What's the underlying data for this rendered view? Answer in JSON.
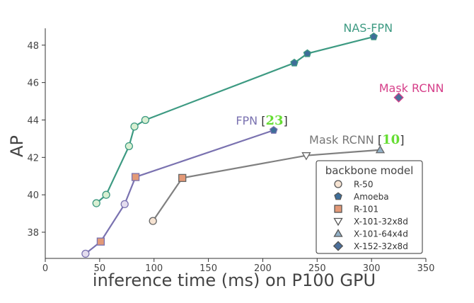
{
  "chart_data": {
    "type": "line",
    "title": "",
    "xlabel": "inference time (ms) on P100 GPU",
    "ylabel": "AP",
    "xlim": [
      0,
      350
    ],
    "ylim": [
      36.6,
      48.9
    ],
    "xticks": [
      0,
      50,
      100,
      150,
      200,
      250,
      300,
      350
    ],
    "yticks": [
      38,
      40,
      42,
      44,
      46,
      48
    ],
    "grid": false,
    "legend_title": "backbone model",
    "legend_position": "lower-right",
    "colors": {
      "nasfpn": "#3d9a82",
      "fpn": "#7a72b0",
      "maskrcnn_x": "#808080",
      "maskrcnn_single": "#d6408a",
      "ref": "#66dd33",
      "marker_r50": "#f6e3d2",
      "marker_amoeba": "#3e6e99",
      "marker_r101": "#e39977",
      "marker_x101_32": "#ffffff",
      "marker_x101_64": "#93b1c7",
      "marker_x152": "#4b6f9b",
      "pale_green": "#d9efd2",
      "pale_lavender": "#e3dcee"
    },
    "legend": [
      {
        "label": "R-50",
        "marker": "circle",
        "color": "#f6e3d2"
      },
      {
        "label": "Amoeba",
        "marker": "pentagon",
        "color": "#3e6e99"
      },
      {
        "label": "R-101",
        "marker": "square",
        "color": "#e39977"
      },
      {
        "label": "X-101-32x8d",
        "marker": "triangle-down",
        "color": "#ffffff"
      },
      {
        "label": "X-101-64x4d",
        "marker": "triangle-up",
        "color": "#93b1c7"
      },
      {
        "label": "X-152-32x8d",
        "marker": "diamond",
        "color": "#4b6f9b"
      }
    ],
    "series": [
      {
        "name": "NAS-FPN",
        "label_text": "NAS-FPN",
        "ref": "",
        "color": "#3d9a82",
        "points": [
          {
            "x": 47,
            "y": 39.55,
            "marker": "circle",
            "fill": "#d9efd2"
          },
          {
            "x": 56,
            "y": 40.0,
            "marker": "circle",
            "fill": "#d9efd2"
          },
          {
            "x": 77,
            "y": 42.6,
            "marker": "circle",
            "fill": "#d9efd2"
          },
          {
            "x": 82,
            "y": 43.65,
            "marker": "circle",
            "fill": "#d9efd2"
          },
          {
            "x": 92,
            "y": 44.0,
            "marker": "circle",
            "fill": "#d9efd2"
          },
          {
            "x": 229,
            "y": 47.05,
            "marker": "pentagon",
            "fill": "#3e6e99"
          },
          {
            "x": 241,
            "y": 47.55,
            "marker": "pentagon",
            "fill": "#3e6e99"
          },
          {
            "x": 302,
            "y": 48.45,
            "marker": "pentagon",
            "fill": "#3e6e99"
          }
        ]
      },
      {
        "name": "FPN",
        "label_text": "FPN",
        "ref": "23",
        "color": "#7a72b0",
        "points": [
          {
            "x": 37,
            "y": 36.85,
            "marker": "circle",
            "fill": "#e3dcee"
          },
          {
            "x": 51,
            "y": 37.5,
            "marker": "square",
            "fill": "#e39977"
          },
          {
            "x": 73,
            "y": 39.5,
            "marker": "circle",
            "fill": "#e3dcee"
          },
          {
            "x": 83,
            "y": 40.95,
            "marker": "square",
            "fill": "#e39977"
          },
          {
            "x": 210,
            "y": 43.45,
            "marker": "pentagon",
            "fill": "#3e6e99"
          }
        ]
      },
      {
        "name": "Mask RCNN [10]",
        "label_text": "Mask RCNN",
        "ref": "10",
        "color": "#808080",
        "points": [
          {
            "x": 99,
            "y": 38.6,
            "marker": "circle",
            "fill": "#f6e3d2"
          },
          {
            "x": 126,
            "y": 40.9,
            "marker": "square",
            "fill": "#e39977"
          },
          {
            "x": 240,
            "y": 42.1,
            "marker": "triangle-down",
            "fill": "#ffffff"
          },
          {
            "x": 308,
            "y": 42.4,
            "marker": "triangle-up",
            "fill": "#93b1c7"
          }
        ]
      },
      {
        "name": "Mask RCNN",
        "label_text": "Mask RCNN",
        "ref": "",
        "color": "#d6408a",
        "points": [
          {
            "x": 325,
            "y": 45.2,
            "marker": "diamond",
            "fill": "#4b6f9b"
          }
        ]
      }
    ]
  }
}
